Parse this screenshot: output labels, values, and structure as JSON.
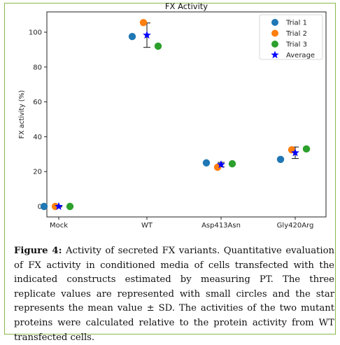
{
  "chart_data": {
    "type": "scatter",
    "title": "FX Activity",
    "xlabel": "",
    "ylabel": "FX activity (%)",
    "categories": [
      "Mock",
      "WT",
      "Asp413Asn",
      "Gly420Arg"
    ],
    "yticks": [
      0,
      20,
      40,
      60,
      80,
      100
    ],
    "ylim": [
      -5,
      110
    ],
    "grid": false,
    "legend_placement": "top-right",
    "series": [
      {
        "name": "Trial 1",
        "marker": "circle",
        "color": "#1f77b4",
        "values": [
          0,
          97.5,
          25,
          27
        ]
      },
      {
        "name": "Trial 2",
        "marker": "circle",
        "color": "#ff7f0e",
        "values": [
          0,
          105.5,
          22.5,
          32.5
        ]
      },
      {
        "name": "Trial 3",
        "marker": "circle",
        "color": "#2ca02c",
        "values": [
          0,
          92,
          24.5,
          33
        ]
      },
      {
        "name": "Average",
        "marker": "star",
        "color": "#0000ff",
        "values": [
          0,
          98.3,
          24,
          30.8
        ],
        "errors": [
          0.3,
          7,
          1.3,
          3.3
        ]
      }
    ]
  },
  "caption": {
    "label": "Figure 4:",
    "text": "Activity of secreted FX variants. Quantitative evaluation of FX activity in conditioned media of cells transfected with the indicated constructs estimated by measuring PT. The three replicate values are represented with small circles and the star represents the mean value ± SD. The activities of the two mutant proteins were calculated relative to the protein activity from WT transfected cells."
  },
  "colors": {
    "frame_border": "#8ab84a"
  }
}
